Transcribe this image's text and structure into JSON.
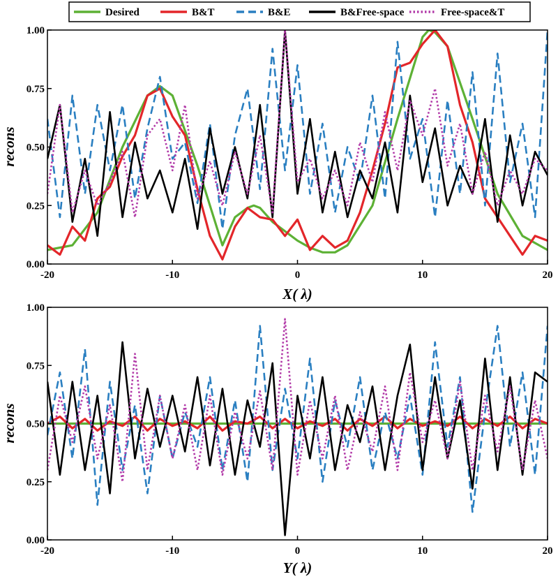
{
  "legend": [
    {
      "name": "Desired",
      "color": "#5db135",
      "style": "solid"
    },
    {
      "name": "B&T",
      "color": "#e3262a",
      "style": "solid"
    },
    {
      "name": "B&E",
      "color": "#2a7fc1",
      "style": "dashed"
    },
    {
      "name": "B&Free-space",
      "color": "#000000",
      "style": "solid"
    },
    {
      "name": "Free-space&T",
      "color": "#b23aa8",
      "style": "dotted"
    }
  ],
  "chart_data": [
    {
      "type": "line",
      "xlabel": "X( λ)",
      "ylabel": "recons",
      "xlim": [
        -20,
        20
      ],
      "ylim": [
        0,
        1
      ],
      "xticks": [
        "-20",
        "-10",
        "0",
        "10",
        "20"
      ],
      "yticks": [
        "0.00",
        "0.25",
        "0.50",
        "0.75",
        "1.00"
      ],
      "series": [
        {
          "name": "Desired",
          "x": [
            -20,
            -18,
            -16,
            -14,
            -12,
            -11,
            -10,
            -8,
            -6,
            -5,
            -4,
            -3.5,
            -3,
            -2,
            0,
            1,
            2,
            3,
            4,
            6,
            8,
            10,
            10.5,
            11,
            12,
            14,
            16,
            18,
            20
          ],
          "y": [
            0.06,
            0.08,
            0.22,
            0.5,
            0.72,
            0.76,
            0.72,
            0.42,
            0.08,
            0.2,
            0.24,
            0.25,
            0.24,
            0.18,
            0.1,
            0.07,
            0.05,
            0.05,
            0.08,
            0.25,
            0.62,
            0.97,
            1.0,
            0.99,
            0.93,
            0.62,
            0.3,
            0.12,
            0.06
          ]
        },
        {
          "name": "B&T",
          "x": [
            -20,
            -19,
            -18,
            -17,
            -16,
            -15,
            -14,
            -13,
            -12,
            -11,
            -10,
            -9,
            -8,
            -7,
            -6,
            -5,
            -4,
            -3,
            -2,
            -1,
            0,
            1,
            2,
            3,
            4,
            5,
            6,
            7,
            8,
            9,
            10,
            11,
            12,
            13,
            14,
            15,
            16,
            17,
            18,
            19,
            20
          ],
          "y": [
            0.08,
            0.04,
            0.16,
            0.1,
            0.28,
            0.33,
            0.46,
            0.55,
            0.72,
            0.75,
            0.63,
            0.55,
            0.32,
            0.12,
            0.02,
            0.16,
            0.24,
            0.2,
            0.19,
            0.12,
            0.19,
            0.06,
            0.12,
            0.07,
            0.1,
            0.22,
            0.4,
            0.6,
            0.84,
            0.86,
            0.94,
            1.0,
            0.93,
            0.68,
            0.52,
            0.28,
            0.2,
            0.12,
            0.04,
            0.12,
            0.1
          ]
        },
        {
          "name": "B&E",
          "x": [
            -20,
            -19,
            -18,
            -17,
            -16,
            -15,
            -14,
            -13,
            -12,
            -11,
            -10,
            -9,
            -8,
            -7,
            -6,
            -5,
            -4,
            -3,
            -2,
            -1,
            0,
            1,
            2,
            3,
            4,
            5,
            6,
            7,
            8,
            9,
            10,
            11,
            12,
            13,
            14,
            15,
            16,
            17,
            18,
            19,
            20
          ],
          "y": [
            0.62,
            0.2,
            0.72,
            0.3,
            0.68,
            0.4,
            0.68,
            0.28,
            0.58,
            0.8,
            0.45,
            0.52,
            0.26,
            0.6,
            0.15,
            0.55,
            0.75,
            0.32,
            0.92,
            0.4,
            0.85,
            0.3,
            0.6,
            0.22,
            0.5,
            0.35,
            0.72,
            0.28,
            0.95,
            0.45,
            0.62,
            0.2,
            0.7,
            0.3,
            0.82,
            0.25,
            0.9,
            0.35,
            0.6,
            0.2,
            1.0
          ]
        },
        {
          "name": "B&Free-space",
          "x": [
            -20,
            -19,
            -18,
            -17,
            -16,
            -15,
            -14,
            -13,
            -12,
            -11,
            -10,
            -9,
            -8,
            -7,
            -6,
            -5,
            -4,
            -3,
            -2,
            -1,
            0,
            1,
            2,
            3,
            4,
            5,
            6,
            7,
            8,
            9,
            10,
            11,
            12,
            13,
            14,
            15,
            16,
            17,
            18,
            19,
            20
          ],
          "y": [
            0.45,
            0.68,
            0.18,
            0.45,
            0.12,
            0.65,
            0.2,
            0.52,
            0.28,
            0.4,
            0.22,
            0.45,
            0.15,
            0.58,
            0.3,
            0.5,
            0.28,
            0.68,
            0.2,
            1.0,
            0.3,
            0.62,
            0.22,
            0.48,
            0.2,
            0.4,
            0.28,
            0.52,
            0.22,
            0.72,
            0.35,
            0.58,
            0.25,
            0.42,
            0.3,
            0.62,
            0.18,
            0.55,
            0.25,
            0.48,
            0.38
          ]
        },
        {
          "name": "Free-space&T",
          "x": [
            -20,
            -19,
            -18,
            -17,
            -16,
            -15,
            -14,
            -13,
            -12,
            -11,
            -10,
            -9,
            -8,
            -7,
            -6,
            -5,
            -4,
            -3,
            -2,
            -1,
            0,
            1,
            2,
            3,
            4,
            5,
            6,
            7,
            8,
            9,
            10,
            11,
            12,
            13,
            14,
            15,
            16,
            17,
            18,
            19,
            20
          ],
          "y": [
            0.3,
            0.68,
            0.22,
            0.4,
            0.25,
            0.35,
            0.48,
            0.2,
            0.55,
            0.62,
            0.4,
            0.68,
            0.28,
            0.44,
            0.25,
            0.48,
            0.3,
            0.55,
            0.22,
            1.0,
            0.35,
            0.45,
            0.28,
            0.4,
            0.25,
            0.52,
            0.35,
            0.65,
            0.4,
            0.7,
            0.55,
            0.75,
            0.42,
            0.6,
            0.3,
            0.48,
            0.25,
            0.4,
            0.3,
            0.45,
            0.4
          ]
        }
      ]
    },
    {
      "type": "line",
      "xlabel": "Y( λ)",
      "ylabel": "recons",
      "xlim": [
        -20,
        20
      ],
      "ylim": [
        0,
        1
      ],
      "xticks": [
        "-20",
        "-10",
        "0",
        "10",
        "20"
      ],
      "yticks": [
        "0.00",
        "0.25",
        "0.50",
        "0.75",
        "1.00"
      ],
      "series": [
        {
          "name": "Desired",
          "x": [
            -20,
            20
          ],
          "y": [
            0.5,
            0.5
          ]
        },
        {
          "name": "B&T",
          "x": [
            -20,
            -19,
            -18,
            -17,
            -16,
            -15,
            -14,
            -13,
            -12,
            -11,
            -10,
            -9,
            -8,
            -7,
            -6,
            -5,
            -4,
            -3,
            -2,
            -1,
            0,
            1,
            2,
            3,
            4,
            5,
            6,
            7,
            8,
            9,
            10,
            11,
            12,
            13,
            14,
            15,
            16,
            17,
            18,
            19,
            20
          ],
          "y": [
            0.5,
            0.53,
            0.48,
            0.52,
            0.47,
            0.51,
            0.49,
            0.53,
            0.47,
            0.52,
            0.49,
            0.51,
            0.48,
            0.53,
            0.47,
            0.51,
            0.5,
            0.53,
            0.48,
            0.52,
            0.48,
            0.51,
            0.49,
            0.52,
            0.47,
            0.52,
            0.49,
            0.53,
            0.48,
            0.52,
            0.49,
            0.51,
            0.49,
            0.53,
            0.48,
            0.52,
            0.49,
            0.53,
            0.48,
            0.52,
            0.5
          ]
        },
        {
          "name": "B&E",
          "x": [
            -20,
            -19,
            -18,
            -17,
            -16,
            -15,
            -14,
            -13,
            -12,
            -11,
            -10,
            -9,
            -8,
            -7,
            -6,
            -5,
            -4,
            -3,
            -2,
            -1,
            0,
            1,
            2,
            3,
            4,
            5,
            6,
            7,
            8,
            9,
            10,
            11,
            12,
            13,
            14,
            15,
            16,
            17,
            18,
            19,
            20
          ],
          "y": [
            0.45,
            0.72,
            0.35,
            0.82,
            0.15,
            0.68,
            0.3,
            0.58,
            0.2,
            0.62,
            0.35,
            0.55,
            0.4,
            0.7,
            0.3,
            0.6,
            0.25,
            0.92,
            0.3,
            0.65,
            0.35,
            0.78,
            0.25,
            0.6,
            0.4,
            0.7,
            0.3,
            0.55,
            0.35,
            0.62,
            0.28,
            0.85,
            0.4,
            0.7,
            0.12,
            0.55,
            0.92,
            0.4,
            0.72,
            0.28,
            0.92
          ]
        },
        {
          "name": "B&Free-space",
          "x": [
            -20,
            -19,
            -18,
            -17,
            -16,
            -15,
            -14,
            -13,
            -12,
            -11,
            -10,
            -9,
            -8,
            -7,
            -6,
            -5,
            -4,
            -3,
            -2,
            -1,
            0,
            1,
            2,
            3,
            4,
            5,
            6,
            7,
            8,
            9,
            10,
            11,
            12,
            13,
            14,
            15,
            16,
            17,
            18,
            19,
            20
          ],
          "y": [
            0.68,
            0.28,
            0.68,
            0.3,
            0.62,
            0.2,
            0.85,
            0.35,
            0.65,
            0.4,
            0.62,
            0.38,
            0.7,
            0.32,
            0.65,
            0.28,
            0.6,
            0.4,
            0.76,
            0.02,
            0.62,
            0.35,
            0.7,
            0.3,
            0.58,
            0.42,
            0.66,
            0.3,
            0.62,
            0.84,
            0.3,
            0.7,
            0.35,
            0.6,
            0.22,
            0.78,
            0.3,
            0.7,
            0.28,
            0.72,
            0.68
          ]
        },
        {
          "name": "Free-space&T",
          "x": [
            -20,
            -19,
            -18,
            -17,
            -16,
            -15,
            -14,
            -13,
            -12,
            -11,
            -10,
            -9,
            -8,
            -7,
            -6,
            -5,
            -4,
            -3,
            -2,
            -1,
            0,
            1,
            2,
            3,
            4,
            5,
            6,
            7,
            8,
            9,
            10,
            11,
            12,
            13,
            14,
            15,
            16,
            17,
            18,
            19,
            20
          ],
          "y": [
            0.3,
            0.62,
            0.42,
            0.66,
            0.35,
            0.58,
            0.25,
            0.8,
            0.3,
            0.62,
            0.35,
            0.58,
            0.3,
            0.62,
            0.28,
            0.55,
            0.35,
            0.64,
            0.3,
            0.95,
            0.28,
            0.6,
            0.35,
            0.62,
            0.3,
            0.55,
            0.38,
            0.66,
            0.3,
            0.72,
            0.42,
            0.6,
            0.35,
            0.68,
            0.3,
            0.62,
            0.38,
            0.66,
            0.3,
            0.6,
            0.35
          ]
        }
      ]
    }
  ]
}
